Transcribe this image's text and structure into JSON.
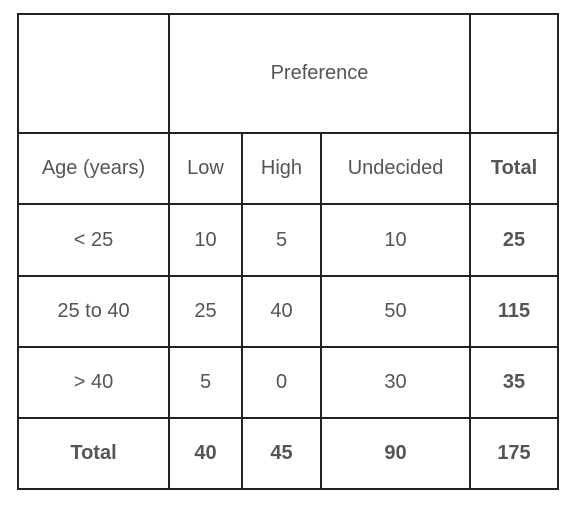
{
  "table": {
    "group_header": "Preference",
    "header": [
      "Age (years)",
      "Low",
      "High",
      "Undecided",
      "Total"
    ],
    "rows": [
      [
        "< 25",
        10,
        5,
        10,
        25
      ],
      [
        "25 to 40",
        25,
        40,
        50,
        115
      ],
      [
        "> 40",
        5,
        0,
        30,
        35
      ],
      [
        "Total",
        40,
        45,
        90,
        175
      ]
    ]
  }
}
